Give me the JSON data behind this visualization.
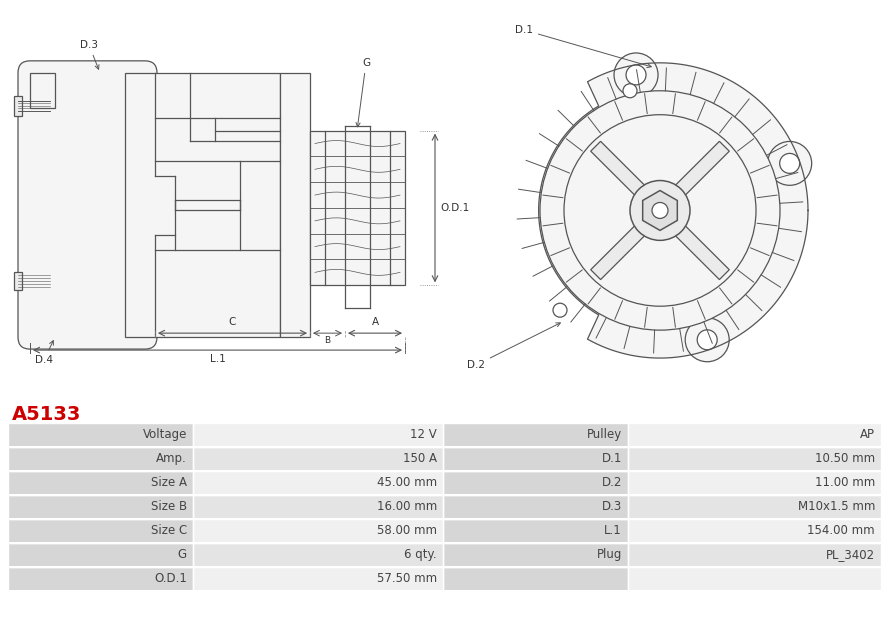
{
  "title": "A5133",
  "title_color": "#cc0000",
  "table_rows": [
    [
      "Voltage",
      "12 V",
      "Pulley",
      "AP"
    ],
    [
      "Amp.",
      "150 A",
      "D.1",
      "10.50 mm"
    ],
    [
      "Size A",
      "45.00 mm",
      "D.2",
      "11.00 mm"
    ],
    [
      "Size B",
      "16.00 mm",
      "D.3",
      "M10x1.5 mm"
    ],
    [
      "Size C",
      "58.00 mm",
      "L.1",
      "154.00 mm"
    ],
    [
      "G",
      "6 qty.",
      "Plug",
      "PL_3402"
    ],
    [
      "O.D.1",
      "57.50 mm",
      "",
      ""
    ]
  ],
  "lc": "#555555",
  "lw": 0.9,
  "fig_w": 8.89,
  "fig_h": 6.23,
  "dpi": 100
}
